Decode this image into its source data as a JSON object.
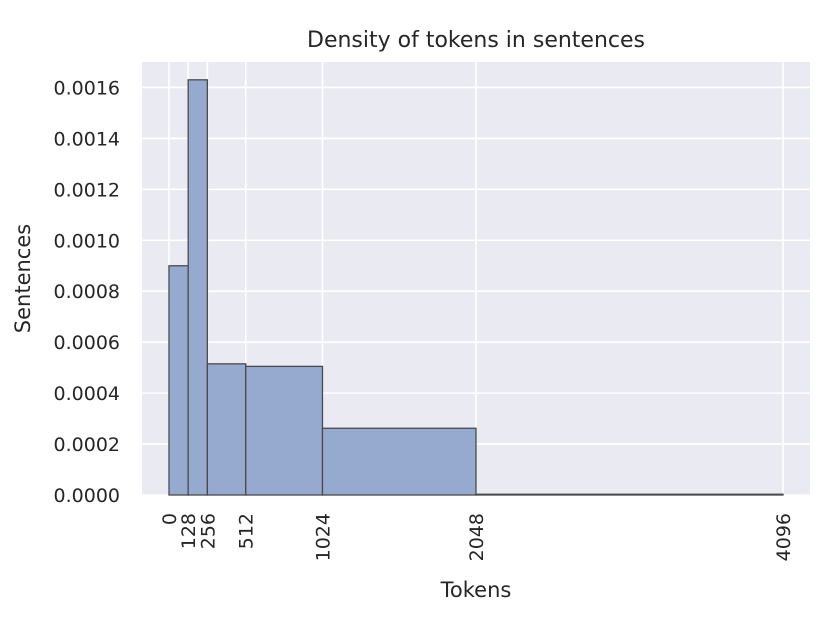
{
  "chart_data": {
    "type": "bar",
    "title": "Density of tokens in sentences",
    "xlabel": "Tokens",
    "ylabel": "Sentences",
    "x_ticks": [
      0,
      128,
      256,
      512,
      1024,
      2048,
      4096
    ],
    "x_tick_labels": [
      "0",
      "128",
      "256",
      "512",
      "1024",
      "2048",
      "4096"
    ],
    "y_ticks": [
      0,
      0.0002,
      0.0004,
      0.0006,
      0.0008,
      0.001,
      0.0012,
      0.0014,
      0.0016
    ],
    "y_tick_labels": [
      "0.0000",
      "0.0002",
      "0.0004",
      "0.0006",
      "0.0008",
      "0.0010",
      "0.0012",
      "0.0014",
      "0.0016"
    ],
    "xlim": [
      -180,
      4276
    ],
    "ylim": [
      0,
      0.0017
    ],
    "bins": [
      {
        "start": 0,
        "end": 128,
        "value": 0.0009
      },
      {
        "start": 128,
        "end": 256,
        "value": 0.00163
      },
      {
        "start": 256,
        "end": 512,
        "value": 0.000515
      },
      {
        "start": 512,
        "end": 1024,
        "value": 0.000505
      },
      {
        "start": 1024,
        "end": 2048,
        "value": 0.000262
      },
      {
        "start": 2048,
        "end": 4096,
        "value": 3e-06
      }
    ],
    "grid": true,
    "colors": {
      "bar_fill": "#96a9cf",
      "bar_edge": "#4a4a4a",
      "plot_background": "#eaeaf2",
      "grid": "#ffffff"
    }
  }
}
